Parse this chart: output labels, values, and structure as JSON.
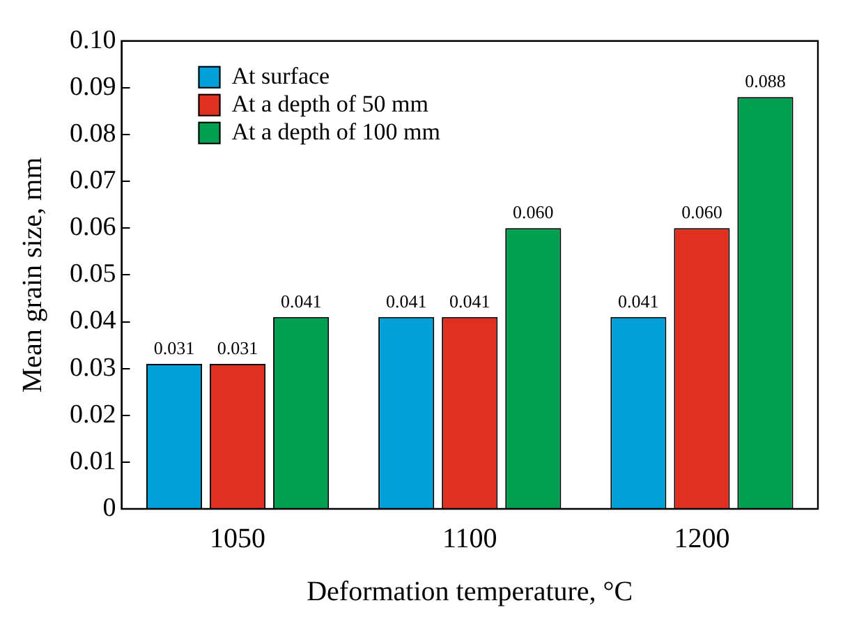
{
  "chart_data": {
    "type": "bar",
    "xlabel": "Deformation temperature, °C",
    "ylabel": "Mean grain size, mm",
    "categories": [
      "1050",
      "1100",
      "1200"
    ],
    "series": [
      {
        "name": "At surface",
        "color": "#00a0d8",
        "values": [
          0.031,
          0.041,
          0.041
        ],
        "value_labels": [
          "0.031",
          "0.041",
          "0.041"
        ]
      },
      {
        "name": "At a depth of 50 mm",
        "color": "#e03020",
        "values": [
          0.031,
          0.041,
          0.06
        ],
        "value_labels": [
          "0.031",
          "0.041",
          "0.060"
        ]
      },
      {
        "name": "At a depth of 100 mm",
        "color": "#00a050",
        "values": [
          0.041,
          0.06,
          0.088
        ],
        "value_labels": [
          "0.041",
          "0.060",
          "0.088"
        ]
      }
    ],
    "ylim": [
      0,
      0.1
    ],
    "yticks": [
      0,
      0.01,
      0.02,
      0.03,
      0.04,
      0.05,
      0.06,
      0.07,
      0.08,
      0.09,
      {
        "value": 0.1,
        "label": "0.10"
      }
    ],
    "grid": false,
    "legend": "top left"
  }
}
